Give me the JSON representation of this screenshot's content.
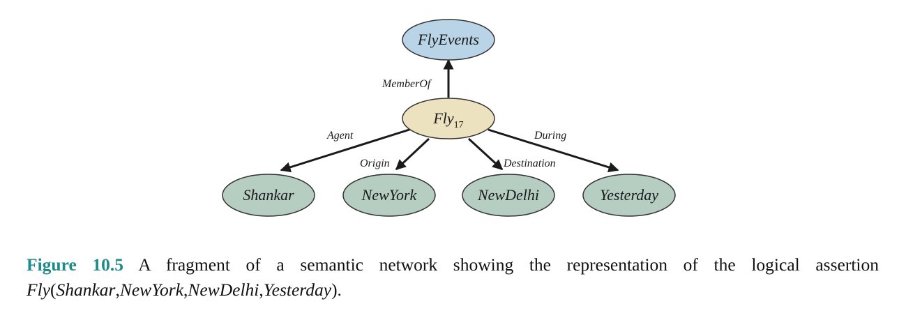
{
  "colors": {
    "top_node": "#b9d4e6",
    "center_node": "#ece2c0",
    "leaf_node": "#b6cec2",
    "caption_accent": "#1f8a8a",
    "edge": "#1a1a1a"
  },
  "nodes": {
    "fly_events": "FlyEvents",
    "fly": {
      "base": "Fly",
      "subscript": "17"
    },
    "shankar": "Shankar",
    "new_york": "NewYork",
    "new_delhi": "NewDelhi",
    "yesterday": "Yesterday"
  },
  "edges": {
    "member_of": "MemberOf",
    "agent": "Agent",
    "origin": "Origin",
    "destination": "Destination",
    "during": "During"
  },
  "caption": {
    "figure_number": "Figure 10.5",
    "text": "A fragment of a semantic network showing the representation of the logical assertion",
    "predicate": "Fly",
    "open_paren": "(",
    "arg1": "Shankar",
    "arg2": "NewYork",
    "arg3": "NewDelhi",
    "arg4": "Yesterday",
    "separator": ",",
    "close": ")."
  }
}
